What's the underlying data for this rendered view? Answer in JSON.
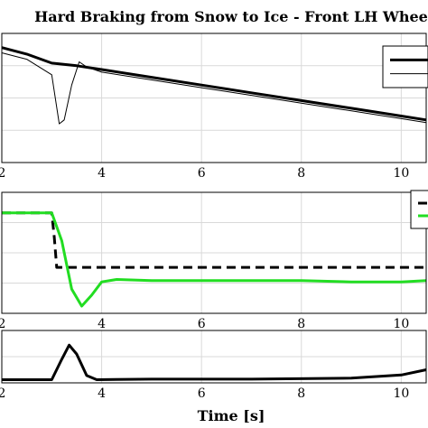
{
  "title": "Hard Braking from Snow to Ice - Front LH Whee",
  "xlabel": "Time [s]",
  "chart_data": [
    {
      "type": "line",
      "xlim": [
        2,
        10.5
      ],
      "xticks": [
        "2",
        "4",
        "6",
        "8",
        "10"
      ],
      "grid": true,
      "legend": "top-right",
      "series": [
        {
          "color": "#000000",
          "style": "solid-thick",
          "x": [
            2.0,
            2.5,
            3.0,
            3.5,
            4.0,
            5.0,
            6.0,
            7.0,
            8.0,
            9.0,
            10.0,
            10.5
          ],
          "y": [
            0.89,
            0.84,
            0.77,
            0.75,
            0.72,
            0.66,
            0.6,
            0.54,
            0.48,
            0.42,
            0.36,
            0.33
          ]
        },
        {
          "color": "#000000",
          "style": "solid-thin",
          "x": [
            2.0,
            2.5,
            3.0,
            3.15,
            3.25,
            3.4,
            3.55,
            3.7,
            4.0,
            5.0,
            6.0,
            7.0,
            8.0,
            9.0,
            10.0,
            10.5
          ],
          "y": [
            0.85,
            0.8,
            0.68,
            0.3,
            0.33,
            0.6,
            0.78,
            0.74,
            0.7,
            0.64,
            0.58,
            0.52,
            0.46,
            0.4,
            0.34,
            0.31
          ]
        }
      ]
    },
    {
      "type": "line",
      "xlim": [
        2,
        10.5
      ],
      "xticks": [
        "2",
        "4",
        "6",
        "8",
        "10"
      ],
      "grid": true,
      "legend": "top-right",
      "series": [
        {
          "color": "#000000",
          "style": "dashed-thick",
          "x": [
            2.0,
            3.0,
            3.05,
            3.1,
            10.5
          ],
          "y": [
            0.83,
            0.83,
            0.63,
            0.38,
            0.38
          ]
        },
        {
          "color": "#22dd22",
          "style": "solid-thick",
          "x": [
            2.0,
            3.0,
            3.2,
            3.4,
            3.6,
            3.8,
            4.0,
            4.3,
            5.0,
            6.0,
            7.0,
            8.0,
            9.0,
            10.0,
            10.5
          ],
          "y": [
            0.83,
            0.83,
            0.6,
            0.2,
            0.06,
            0.15,
            0.26,
            0.28,
            0.27,
            0.27,
            0.27,
            0.27,
            0.26,
            0.26,
            0.27
          ]
        }
      ]
    },
    {
      "type": "line",
      "xlim": [
        2,
        10.5
      ],
      "xticks": [
        "2",
        "4",
        "6",
        "8",
        "10"
      ],
      "grid": true,
      "series": [
        {
          "color": "#000000",
          "style": "solid-thick",
          "x": [
            2.0,
            3.0,
            3.2,
            3.35,
            3.5,
            3.7,
            3.9,
            5.0,
            7.0,
            9.0,
            10.0,
            10.5
          ],
          "y": [
            0.06,
            0.06,
            0.45,
            0.72,
            0.55,
            0.14,
            0.06,
            0.07,
            0.07,
            0.09,
            0.15,
            0.25
          ]
        }
      ]
    }
  ]
}
